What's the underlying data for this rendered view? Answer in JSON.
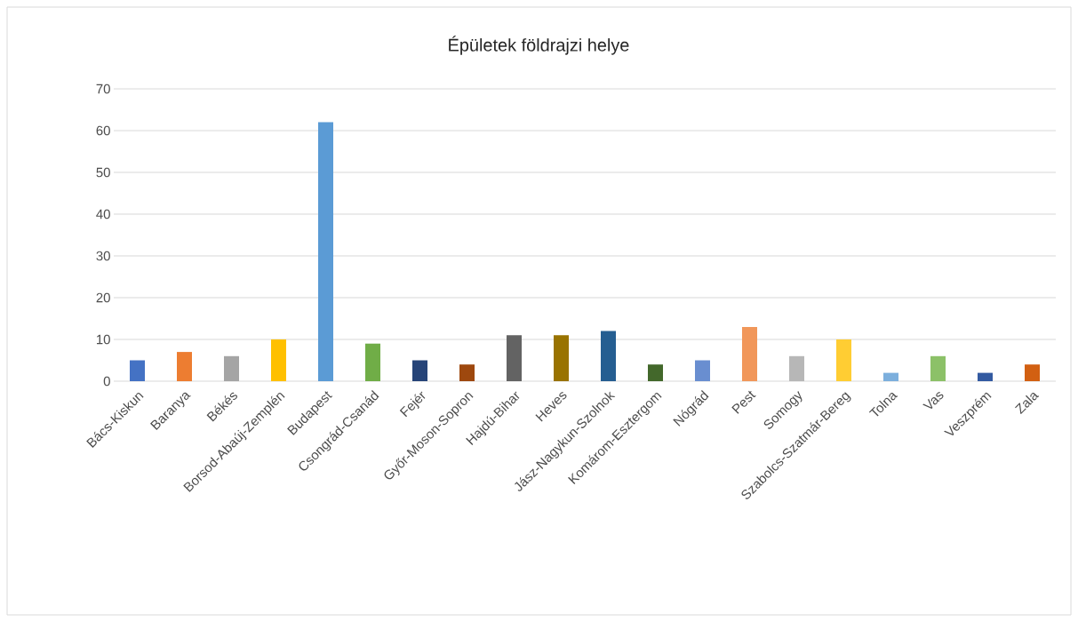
{
  "chart_data": {
    "type": "bar",
    "title": "Épületek földrajzi helye",
    "categories": [
      "Bács-Kiskun",
      "Baranya",
      "Békés",
      "Borsod-Abaúj-Zemplén",
      "Budapest",
      "Csongrád-Csanád",
      "Fejér",
      "Győr-Moson-Sopron",
      "Hajdú-Bihar",
      "Heves",
      "Jász-Nagykun-Szolnok",
      "Komárom-Esztergom",
      "Nógrád",
      "Pest",
      "Somogy",
      "Szabolcs-Szatmár-Bereg",
      "Tolna",
      "Vas",
      "Veszprém",
      "Zala"
    ],
    "values": [
      5,
      7,
      6,
      10,
      62,
      9,
      5,
      4,
      11,
      11,
      12,
      4,
      5,
      13,
      6,
      10,
      2,
      6,
      2,
      4
    ],
    "colors": [
      "#4472c4",
      "#ed7d31",
      "#a5a5a5",
      "#ffc000",
      "#5b9bd5",
      "#70ad47",
      "#264478",
      "#9e480e",
      "#636363",
      "#997300",
      "#255e91",
      "#43682b",
      "#698ed0",
      "#f1975a",
      "#b7b7b7",
      "#ffcd33",
      "#7cafdd",
      "#8cc168",
      "#335aa1",
      "#d26012"
    ],
    "ylim": [
      0,
      70
    ],
    "yticks": [
      0,
      10,
      20,
      30,
      40,
      50,
      60,
      70
    ],
    "grid": "y"
  }
}
